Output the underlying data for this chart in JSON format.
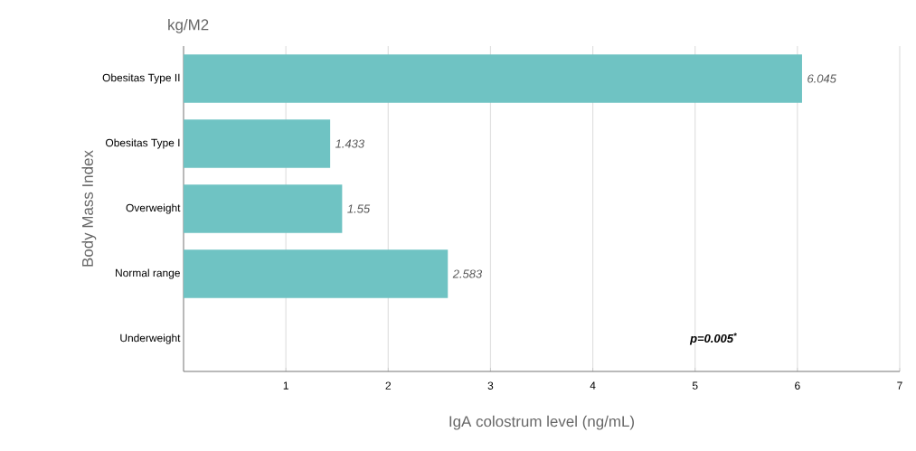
{
  "chart_data": {
    "type": "bar",
    "orientation": "horizontal",
    "title": "kg/M2",
    "xlabel": "IgA colostrum level (ng/mL)",
    "ylabel": "Body Mass Index",
    "categories": [
      "Obesitas Type II",
      "Obesitas Type I",
      "Overweight",
      "Normal range",
      "Underweight"
    ],
    "values": [
      6.045,
      1.433,
      1.55,
      2.583,
      null
    ],
    "value_labels": [
      "6.045",
      "1.433",
      "1.55",
      "2.583",
      null
    ],
    "color": "#6fc3c3",
    "xlim": [
      0,
      7
    ],
    "xticks": [
      1,
      2,
      3,
      4,
      5,
      6,
      7
    ],
    "grid": "x",
    "annotations": [
      "p=0.005$^{*}$"
    ]
  }
}
